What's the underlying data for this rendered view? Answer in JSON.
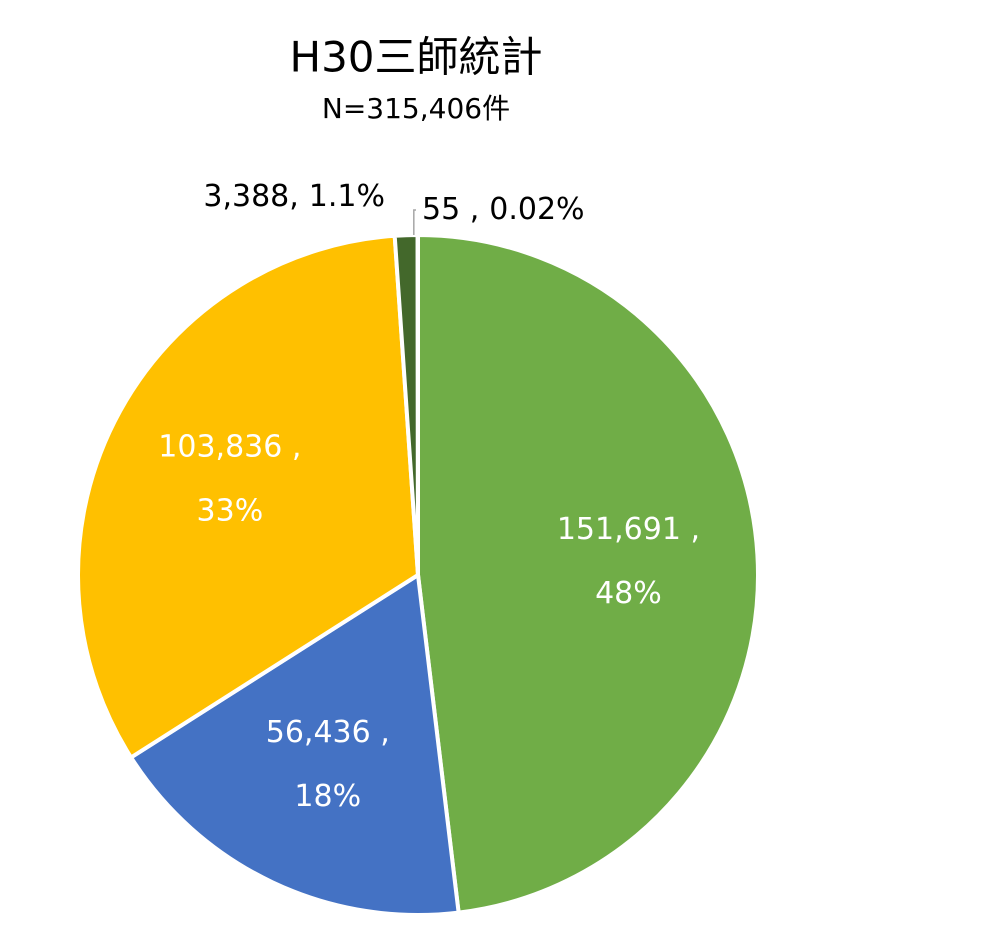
{
  "chart_data": {
    "type": "pie",
    "title": "H30三師統計",
    "subtitle": "N=315,406件",
    "values": [
      151691,
      56436,
      103836,
      3388,
      55
    ],
    "value_labels": [
      "151,691 ,",
      "56,436 ,",
      "103,836 ,",
      "3,388,",
      "55 ,"
    ],
    "percents": [
      48,
      18,
      33,
      1.1,
      0.02
    ],
    "percent_labels": [
      "48%",
      "18%",
      "33%",
      "1.1%",
      "0.02%"
    ],
    "colors": [
      "#70ad47",
      "#4472c4",
      "#ffc000",
      "#43682b",
      "#264478"
    ]
  }
}
